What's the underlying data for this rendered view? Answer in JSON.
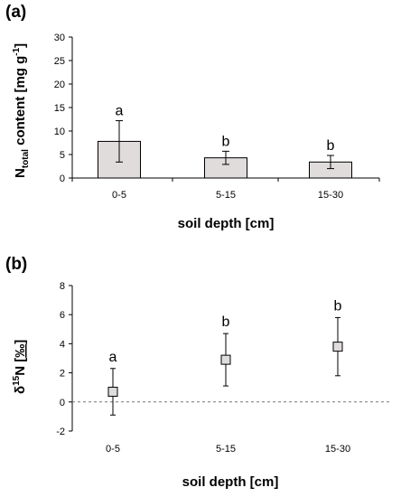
{
  "chart_data": [
    {
      "panel_label": "(a)",
      "type": "bar",
      "categories": [
        "0-5",
        "5-15",
        "15-30"
      ],
      "values": [
        7.8,
        4.3,
        3.4
      ],
      "errors": [
        4.4,
        1.4,
        1.4
      ],
      "significance": [
        "a",
        "b",
        "b"
      ],
      "xlabel": "soil depth [cm]",
      "ylabel": {
        "main": "N",
        "subscript": "total",
        "middle": " content [mg g",
        "superscript": "-1",
        "end": "]"
      },
      "ylim": [
        0,
        30
      ],
      "yticks": [
        0,
        5,
        10,
        15,
        20,
        25,
        30
      ],
      "bar_color": "#e0dcdc",
      "grid": false
    },
    {
      "panel_label": "(b)",
      "type": "scatter",
      "categories": [
        "0-5",
        "5-15",
        "15-30"
      ],
      "values": [
        0.7,
        2.9,
        3.8
      ],
      "errors": [
        1.6,
        1.8,
        2.0
      ],
      "significance": [
        "a",
        "b",
        "b"
      ],
      "xlabel": "soil depth [cm]",
      "ylabel": {
        "main": "δ",
        "superscript": "15",
        "middle": "N [",
        "unit": "‰",
        "end": "]"
      },
      "ylim": [
        -2,
        8
      ],
      "yticks": [
        -2,
        0,
        2,
        4,
        6,
        8
      ],
      "marker_color": "#e0dcdc",
      "reference_line": 0,
      "grid": false
    }
  ]
}
